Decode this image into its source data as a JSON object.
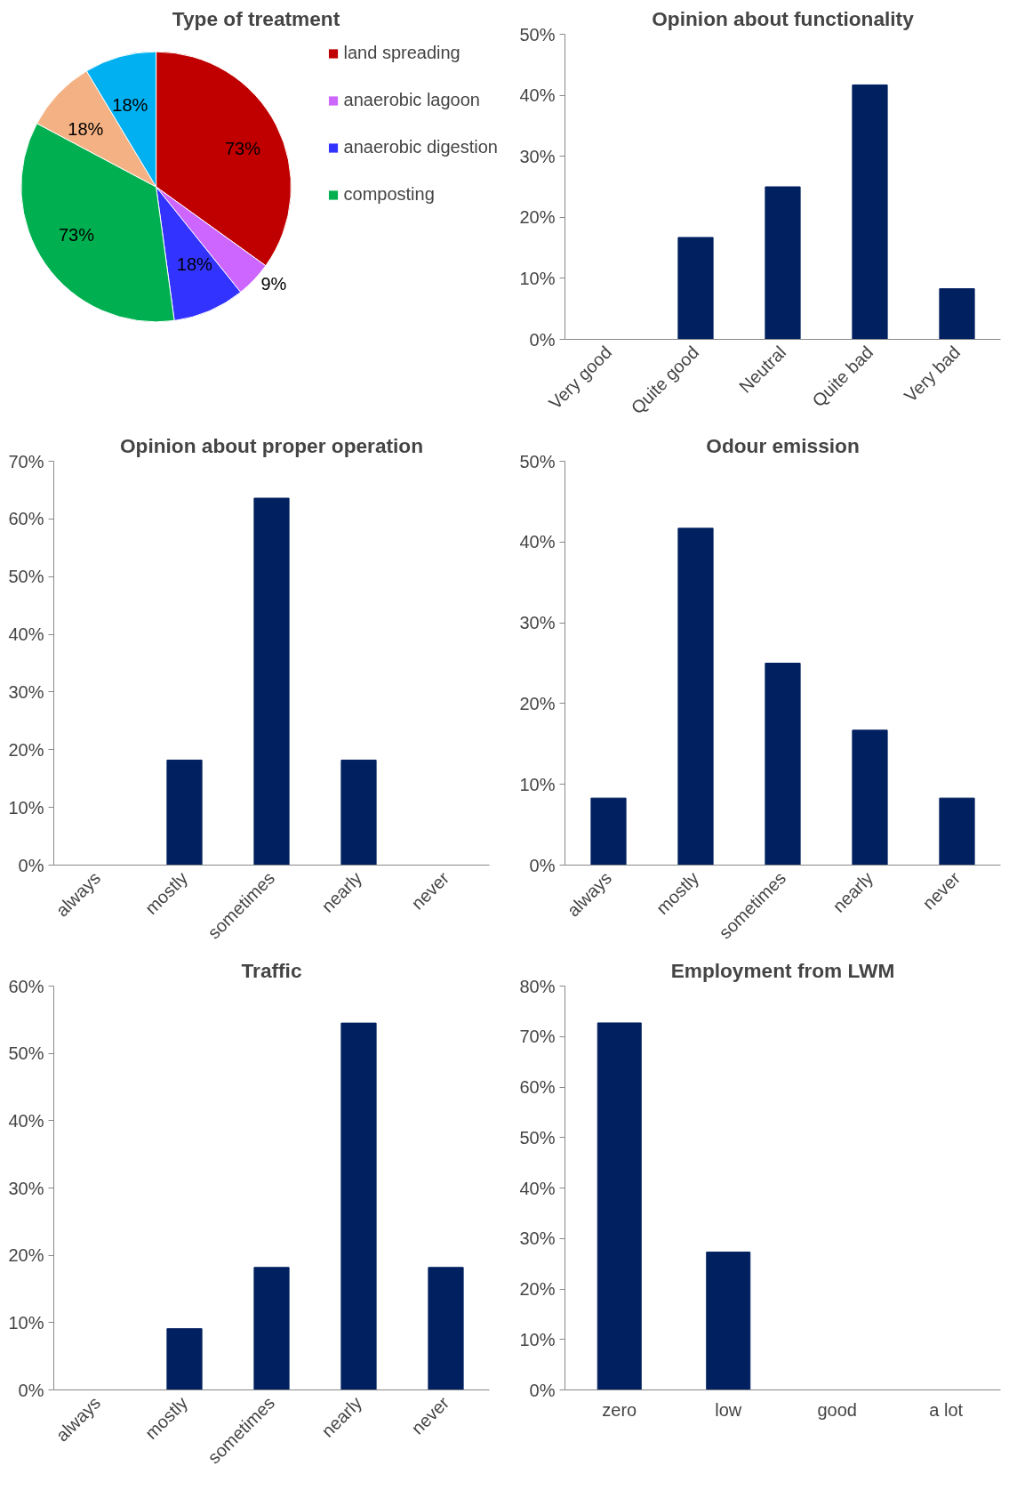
{
  "chart_data": [
    {
      "type": "pie",
      "title": "Type of treatment",
      "categories": [
        "land spreading",
        "anaerobic lagoon",
        "anaerobic digestion",
        "composting",
        null,
        null
      ],
      "values": [
        73,
        9,
        18,
        73,
        18,
        18
      ],
      "colors": [
        "#c00000",
        "#cc66ff",
        "#3333ff",
        "#00b050",
        "#f4b183",
        "#00b0f0"
      ],
      "value_labels": [
        "73%",
        "9%",
        "18%",
        "73%",
        "18%",
        "18%"
      ],
      "legend": "top right"
    },
    {
      "type": "bar",
      "title": "Opinion about functionality",
      "categories": [
        "Very good",
        "Quite good",
        "Neutral",
        "Quite bad",
        "Very bad"
      ],
      "values": [
        0,
        16.7,
        25,
        41.7,
        8.3
      ],
      "color": "#002060",
      "ylim": [
        0,
        50
      ],
      "yticks": [
        {
          "value": 0,
          "label": "0%"
        },
        {
          "value": 10,
          "label": "10%"
        },
        {
          "value": 20,
          "label": "20%"
        },
        {
          "value": 30,
          "label": "30%"
        },
        {
          "value": 40,
          "label": "40%"
        },
        {
          "value": 50,
          "label": "50%"
        }
      ]
    },
    {
      "type": "bar",
      "title": "Opinion about proper operation",
      "categories": [
        "always",
        "mostly",
        "sometimes",
        "nearly",
        "never"
      ],
      "values": [
        0,
        18.2,
        63.6,
        18.2,
        0
      ],
      "color": "#002060",
      "ylim": [
        0,
        70
      ],
      "yticks": [
        {
          "value": 0,
          "label": "0%"
        },
        {
          "value": 10,
          "label": "10%"
        },
        {
          "value": 20,
          "label": "20%"
        },
        {
          "value": 30,
          "label": "30%"
        },
        {
          "value": 40,
          "label": "40%"
        },
        {
          "value": 50,
          "label": "50%"
        },
        {
          "value": 60,
          "label": "60%"
        },
        {
          "value": 70,
          "label": "70%"
        }
      ]
    },
    {
      "type": "bar",
      "title": "Odour emission",
      "categories": [
        "always",
        "mostly",
        "sometimes",
        "nearly",
        "never"
      ],
      "values": [
        8.3,
        41.7,
        25,
        16.7,
        8.3
      ],
      "color": "#002060",
      "ylim": [
        0,
        50
      ],
      "yticks": [
        {
          "value": 0,
          "label": "0%"
        },
        {
          "value": 10,
          "label": "10%"
        },
        {
          "value": 20,
          "label": "20%"
        },
        {
          "value": 30,
          "label": "30%"
        },
        {
          "value": 40,
          "label": "40%"
        },
        {
          "value": 50,
          "label": "50%"
        }
      ]
    },
    {
      "type": "bar",
      "title": "Traffic",
      "categories": [
        "always",
        "mostly",
        "sometimes",
        "nearly",
        "never"
      ],
      "values": [
        0,
        9.1,
        18.2,
        54.5,
        18.2
      ],
      "color": "#002060",
      "ylim": [
        0,
        60
      ],
      "yticks": [
        {
          "value": 0,
          "label": "0%"
        },
        {
          "value": 10,
          "label": "10%"
        },
        {
          "value": 20,
          "label": "20%"
        },
        {
          "value": 30,
          "label": "30%"
        },
        {
          "value": 40,
          "label": "40%"
        },
        {
          "value": 50,
          "label": "50%"
        },
        {
          "value": 60,
          "label": "60%"
        }
      ]
    },
    {
      "type": "bar",
      "title": "Employment from LWM",
      "categories": [
        "zero",
        "low",
        "good",
        "a lot"
      ],
      "values": [
        72.7,
        27.3,
        0,
        0
      ],
      "color": "#002060",
      "ylim": [
        0,
        80
      ],
      "yticks": [
        {
          "value": 0,
          "label": "0%"
        },
        {
          "value": 10,
          "label": "10%"
        },
        {
          "value": 20,
          "label": "20%"
        },
        {
          "value": 30,
          "label": "30%"
        },
        {
          "value": 40,
          "label": "40%"
        },
        {
          "value": 50,
          "label": "50%"
        },
        {
          "value": 60,
          "label": "60%"
        },
        {
          "value": 70,
          "label": "70%"
        },
        {
          "value": 80,
          "label": "80%"
        }
      ]
    }
  ]
}
